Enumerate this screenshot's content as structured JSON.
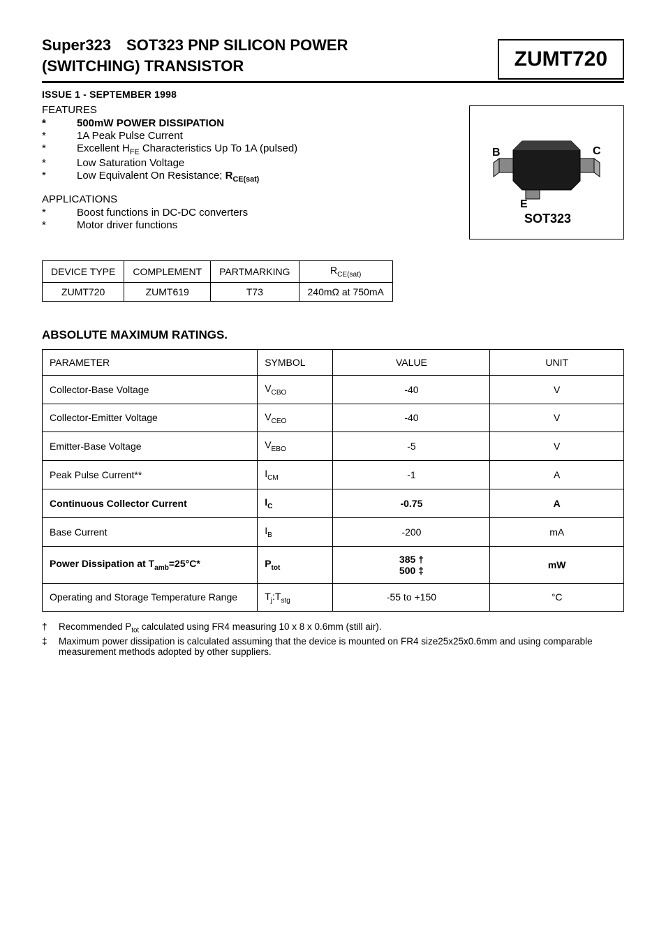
{
  "header": {
    "title_line1": "Super323 SOT323 PNP SILICON POWER",
    "title_line2": "(SWITCHING) TRANSISTOR",
    "part_number": "ZUMT720",
    "issue": "ISSUE 1 - SEPTEMBER 1998"
  },
  "features": {
    "heading": "FEATURES",
    "items": [
      {
        "bullet": "*",
        "text": "500mW POWER DISSIPATION",
        "bold": true
      },
      {
        "bullet": "*",
        "text": "1A Peak Pulse Current",
        "bold": false
      },
      {
        "bullet": "*",
        "text_html": "Excellent H<sub>FE</sub> Characteristics Up To 1A (pulsed)",
        "bold": false
      },
      {
        "bullet": "*",
        "text": "Low Saturation Voltage",
        "bold": false
      },
      {
        "bullet": "*",
        "text_html": "Low Equivalent On Resistance; <b>R<sub>CE(sat)</sub></b>",
        "bold": false
      }
    ]
  },
  "applications": {
    "heading": "APPLICATIONS",
    "items": [
      {
        "bullet": "*",
        "text": "Boost functions in DC-DC converters"
      },
      {
        "bullet": "*",
        "text": "Motor driver functions"
      }
    ]
  },
  "package_diagram": {
    "label": "SOT323",
    "pin_b": "B",
    "pin_c": "C",
    "pin_e": "E"
  },
  "device_table": {
    "headers": [
      "DEVICE TYPE",
      "COMPLEMENT",
      "PARTMARKING",
      "R<sub>CE(sat)</sub>"
    ],
    "row": [
      "ZUMT720",
      "ZUMT619",
      "T73",
      "240mΩ at 750mA"
    ]
  },
  "ratings": {
    "heading": "ABSOLUTE MAXIMUM RATINGS.",
    "headers": [
      "PARAMETER",
      "SYMBOL",
      "VALUE",
      "UNIT"
    ],
    "rows": [
      {
        "param": "Collector-Base Voltage",
        "symbol": "V<sub>CBO</sub>",
        "value": "-40",
        "unit": "V",
        "bold": false
      },
      {
        "param": "Collector-Emitter Voltage",
        "symbol": "V<sub>CEO</sub>",
        "value": "-40",
        "unit": "V",
        "bold": false
      },
      {
        "param": "Emitter-Base Voltage",
        "symbol": "V<sub>EBO</sub>",
        "value": "-5",
        "unit": "V",
        "bold": false
      },
      {
        "param": "Peak Pulse Current**",
        "symbol": "I<sub>CM</sub>",
        "value": "-1",
        "unit": "A",
        "bold": false
      },
      {
        "param": "Continuous Collector Current",
        "symbol": "I<sub>C</sub>",
        "value": "-0.75",
        "unit": "A",
        "bold": true
      },
      {
        "param": "Base Current",
        "symbol": "I<sub>B</sub>",
        "value": "-200",
        "unit": "mA",
        "bold": false
      },
      {
        "param": "Power Dissipation at T<sub>amb</sub>=25°C*",
        "symbol": "P<sub>tot</sub>",
        "value": "385 †<br>500 ‡",
        "unit": "mW",
        "bold": true
      },
      {
        "param": "Operating and Storage Temperature Range",
        "symbol": "T<sub>j</sub>:T<sub>stg</sub>",
        "value": "-55 to +150",
        "unit": "°C",
        "bold": false
      }
    ]
  },
  "footnotes": [
    {
      "mark": "†",
      "text_html": "Recommended P<sub>tot</sub> calculated using FR4 measuring 10 x 8 x 0.6mm (still air)."
    },
    {
      "mark": "‡",
      "text_html": "Maximum power dissipation is calculated assuming that the device is mounted on FR4 size25x25x0.6mm and using comparable measurement methods adopted by other suppliers."
    }
  ],
  "colors": {
    "text": "#000000",
    "background": "#ffffff",
    "border": "#000000"
  }
}
